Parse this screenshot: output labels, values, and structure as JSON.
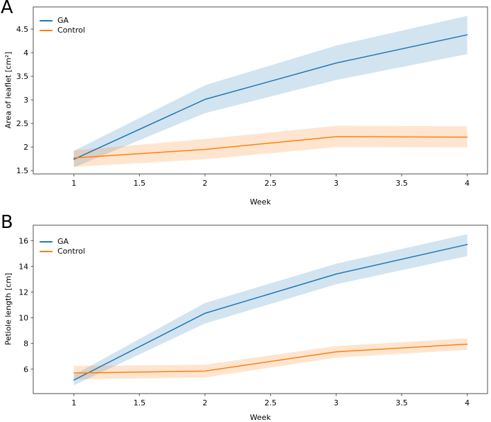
{
  "figure": {
    "background": "#ffffff",
    "spine_color": "#4d4d4d",
    "text_color": "#000000"
  },
  "chart_data": [
    {
      "type": "line",
      "panel_label": "A",
      "title": "",
      "xlabel": "Week",
      "ylabel": "Area of leaflet [cm²]",
      "x": [
        1,
        2,
        3,
        4
      ],
      "xticks": [
        1,
        1.5,
        2,
        2.5,
        3,
        3.5,
        4
      ],
      "yticks": [
        1.5,
        2,
        2.5,
        3,
        3.5,
        4,
        4.5
      ],
      "xlim": [
        0.69,
        4.155
      ],
      "ylim": [
        1.43,
        4.97
      ],
      "grid": false,
      "legend_position": "upper left",
      "band_alpha": 0.2,
      "series": [
        {
          "name": "GA",
          "color": "#1f77b4",
          "values": [
            1.74,
            3.01,
            3.78,
            4.38
          ],
          "band_lower": [
            1.57,
            2.72,
            3.42,
            3.97
          ],
          "band_upper": [
            1.92,
            3.31,
            4.15,
            4.78
          ]
        },
        {
          "name": "Control",
          "color": "#ff7f0e",
          "values": [
            1.77,
            1.95,
            2.22,
            2.21
          ],
          "band_lower": [
            1.58,
            1.74,
            2.0,
            1.99
          ],
          "band_upper": [
            1.93,
            2.17,
            2.45,
            2.44
          ]
        }
      ]
    },
    {
      "type": "line",
      "panel_label": "B",
      "title": "",
      "xlabel": "Week",
      "ylabel": "Petiole length [cm]",
      "x": [
        1,
        2,
        3,
        4
      ],
      "xticks": [
        1,
        1.5,
        2,
        2.5,
        3,
        3.5,
        4
      ],
      "yticks": [
        6,
        8,
        10,
        12,
        14,
        16
      ],
      "xlim": [
        0.69,
        4.155
      ],
      "ylim": [
        4.1,
        17.2
      ],
      "grid": false,
      "legend_position": "upper left",
      "band_alpha": 0.2,
      "series": [
        {
          "name": "GA",
          "color": "#1f77b4",
          "values": [
            5.15,
            10.35,
            13.4,
            15.7
          ],
          "band_lower": [
            4.75,
            9.55,
            12.6,
            14.8
          ],
          "band_upper": [
            5.55,
            11.15,
            14.2,
            16.5
          ]
        },
        {
          "name": "Control",
          "color": "#ff7f0e",
          "values": [
            5.7,
            5.85,
            7.35,
            7.95
          ],
          "band_lower": [
            5.2,
            5.35,
            6.9,
            7.5
          ],
          "band_upper": [
            6.25,
            6.35,
            7.8,
            8.4
          ]
        }
      ]
    }
  ]
}
